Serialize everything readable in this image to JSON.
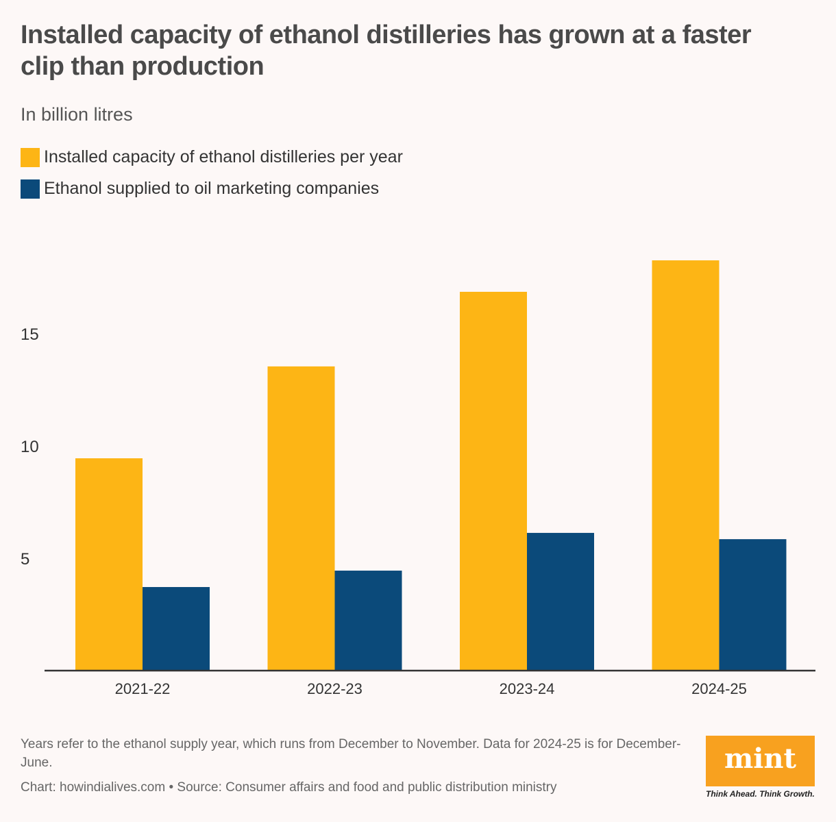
{
  "chart_data": {
    "type": "bar",
    "title": "Installed capacity of ethanol distilleries has grown at a faster clip than production",
    "subtitle": "In billion litres",
    "categories": [
      "2021-22",
      "2022-23",
      "2023-24",
      "2024-25"
    ],
    "series": [
      {
        "name": "Installed capacity of ethanol distilleries per year",
        "color": "#fdb515",
        "values": [
          9.45,
          13.54,
          16.86,
          18.26
        ]
      },
      {
        "name": "Ethanol supplied to oil marketing companies",
        "color": "#0b4a7a",
        "values": [
          3.72,
          4.45,
          6.13,
          5.85
        ]
      }
    ],
    "yticks": [
      5,
      10,
      15
    ],
    "ylim": [
      0,
      19
    ],
    "grid": false,
    "legend_placement": "top-left"
  },
  "footer": {
    "note": "Years refer to the ethanol supply year, which runs from December to November. Data for 2024-25 is for December-June.",
    "source": "Chart: howindialives.com • Source: Consumer affairs and food and public distribution ministry",
    "logo_text": "mint",
    "logo_tagline": "Think Ahead. Think Growth."
  }
}
